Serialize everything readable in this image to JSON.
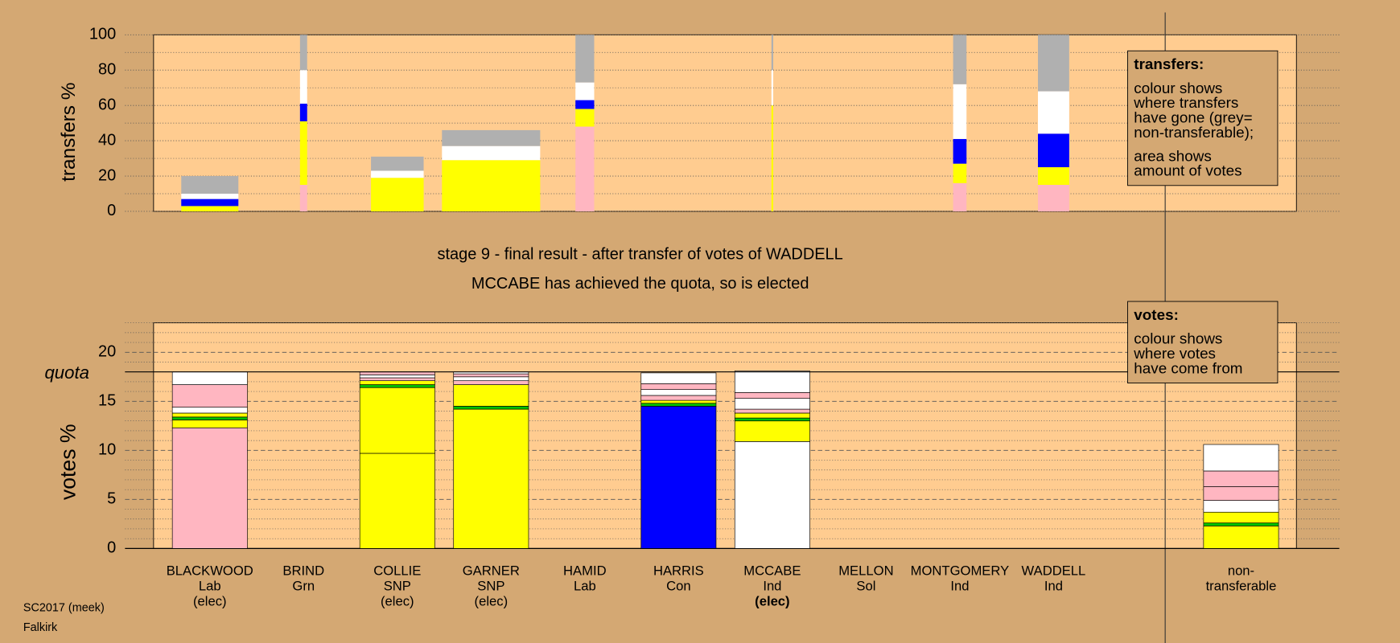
{
  "chart_data": [
    {
      "type": "bar",
      "stacked": true,
      "ylabel": "transfers %",
      "ylim": [
        0,
        100
      ],
      "yticks": [
        0,
        20,
        40,
        60,
        80,
        100
      ],
      "minor_yticks": [
        10,
        30,
        50,
        70,
        90
      ],
      "widths": [
        64,
        8,
        59,
        110,
        21,
        0,
        2,
        0,
        15,
        35
      ],
      "series": [
        {
          "color": "#ffb6c1",
          "values": [
            0,
            15,
            0,
            0,
            48,
            0,
            0,
            0,
            16,
            15
          ]
        },
        {
          "color": "#ffff00",
          "values": [
            3,
            36,
            19,
            29,
            10,
            0,
            60,
            0,
            11,
            10
          ]
        },
        {
          "color": "#0000ff",
          "values": [
            4,
            10,
            0,
            0,
            5,
            0,
            0,
            0,
            14,
            19
          ]
        },
        {
          "color": "#ffffff",
          "values": [
            3,
            19,
            4,
            8,
            10,
            0,
            20,
            0,
            31,
            24
          ]
        },
        {
          "color": "#b0b0b0",
          "values": [
            10,
            20,
            8,
            9,
            27,
            0,
            20,
            0,
            28,
            32
          ]
        }
      ],
      "legend_note": {
        "title": "transfers:",
        "lines": [
          [
            "colour shows",
            "where transfers",
            "have gone (grey=",
            "non-transferable);"
          ],
          [
            "area shows",
            "amount of votes"
          ]
        ]
      }
    },
    {
      "type": "bar",
      "stacked": true,
      "title": "stage 9 - final result - after transfer of votes of WADDELL",
      "subtitle": "MCCABE has achieved the quota, so is elected",
      "ylabel": "votes %",
      "ylim": [
        0,
        23
      ],
      "yticks": [
        0,
        5,
        10,
        15,
        20
      ],
      "minor_yticks": [
        1,
        2,
        3,
        4,
        6,
        7,
        8,
        9,
        11,
        12,
        13,
        14,
        16,
        17,
        18,
        19,
        21,
        22,
        23
      ],
      "quota": {
        "value": 18,
        "label": "quota"
      },
      "categories": [
        [
          "BLACKWOOD",
          "Lab",
          "(elec)"
        ],
        [
          "BRIND",
          "Grn"
        ],
        [
          "COLLIE",
          "SNP",
          "(elec)"
        ],
        [
          "GARNER",
          "SNP",
          "(elec)"
        ],
        [
          "HAMID",
          "Lab"
        ],
        [
          "HARRIS",
          "Con"
        ],
        [
          "MCCABE",
          "Ind",
          "(elec)"
        ],
        [
          "MELLON",
          "Sol"
        ],
        [
          "MONTGOMERY",
          "Ind"
        ],
        [
          "WADDELL",
          "Ind"
        ],
        [
          "non-",
          "transferable"
        ]
      ],
      "bold_categories": [
        6
      ],
      "stacks": [
        [
          {
            "color": "#ffb6c1",
            "value": 12.3
          },
          {
            "color": "#ffff00",
            "value": 0.8
          },
          {
            "color": "#00c000",
            "value": 0.3
          },
          {
            "color": "#ffff00",
            "value": 0.4
          },
          {
            "color": "#ffffff",
            "value": 0.6
          },
          {
            "color": "#ffb6c1",
            "value": 2.3
          },
          {
            "color": "#ffffff",
            "value": 1.3
          }
        ],
        [],
        [
          {
            "color": "#ffff00",
            "value": 9.7
          },
          {
            "color": "#ffff00",
            "value": 6.7
          },
          {
            "color": "#00c000",
            "value": 0.3
          },
          {
            "color": "#ffff00",
            "value": 0.4
          },
          {
            "color": "#ffb6c1",
            "value": 0.3
          },
          {
            "color": "#ffffff",
            "value": 0.3
          },
          {
            "color": "#ffb6c1",
            "value": 0.3
          }
        ],
        [
          {
            "color": "#ffff00",
            "value": 14.2
          },
          {
            "color": "#00c000",
            "value": 0.3
          },
          {
            "color": "#ffff00",
            "value": 2.2
          },
          {
            "color": "#ffb6c1",
            "value": 0.4
          },
          {
            "color": "#ffffff",
            "value": 0.4
          },
          {
            "color": "#ffb6c1",
            "value": 0.3
          },
          {
            "color": "#ffffff",
            "value": 0.2
          }
        ],
        [],
        [
          {
            "color": "#0000ff",
            "value": 14.5
          },
          {
            "color": "#00c000",
            "value": 0.3
          },
          {
            "color": "#ffff00",
            "value": 0.3
          },
          {
            "color": "#ffb6c1",
            "value": 0.5
          },
          {
            "color": "#ffffff",
            "value": 0.6
          },
          {
            "color": "#ffb6c1",
            "value": 0.6
          },
          {
            "color": "#ffffff",
            "value": 1.1
          }
        ],
        [
          {
            "color": "#ffffff",
            "value": 10.9
          },
          {
            "color": "#ffff00",
            "value": 2.1
          },
          {
            "color": "#00c000",
            "value": 0.3
          },
          {
            "color": "#ffff00",
            "value": 0.5
          },
          {
            "color": "#ffb6c1",
            "value": 0.4
          },
          {
            "color": "#ffffff",
            "value": 1.1
          },
          {
            "color": "#ffb6c1",
            "value": 0.6
          },
          {
            "color": "#ffffff",
            "value": 2.2
          }
        ],
        [],
        [],
        [],
        [
          {
            "color": "#ffff00",
            "value": 2.3
          },
          {
            "color": "#00c000",
            "value": 0.3
          },
          {
            "color": "#ffff00",
            "value": 1.1
          },
          {
            "color": "#ffffff",
            "value": 1.2
          },
          {
            "color": "#ffb6c1",
            "value": 1.4
          },
          {
            "color": "#ffb6c1",
            "value": 1.6
          },
          {
            "color": "#ffffff",
            "value": 2.7
          }
        ]
      ],
      "legend_note": {
        "title": "votes:",
        "lines": [
          [
            "colour shows",
            "where votes",
            "have come from"
          ]
        ]
      }
    }
  ],
  "footer": [
    "SC2017 (meek)",
    "Falkirk"
  ]
}
